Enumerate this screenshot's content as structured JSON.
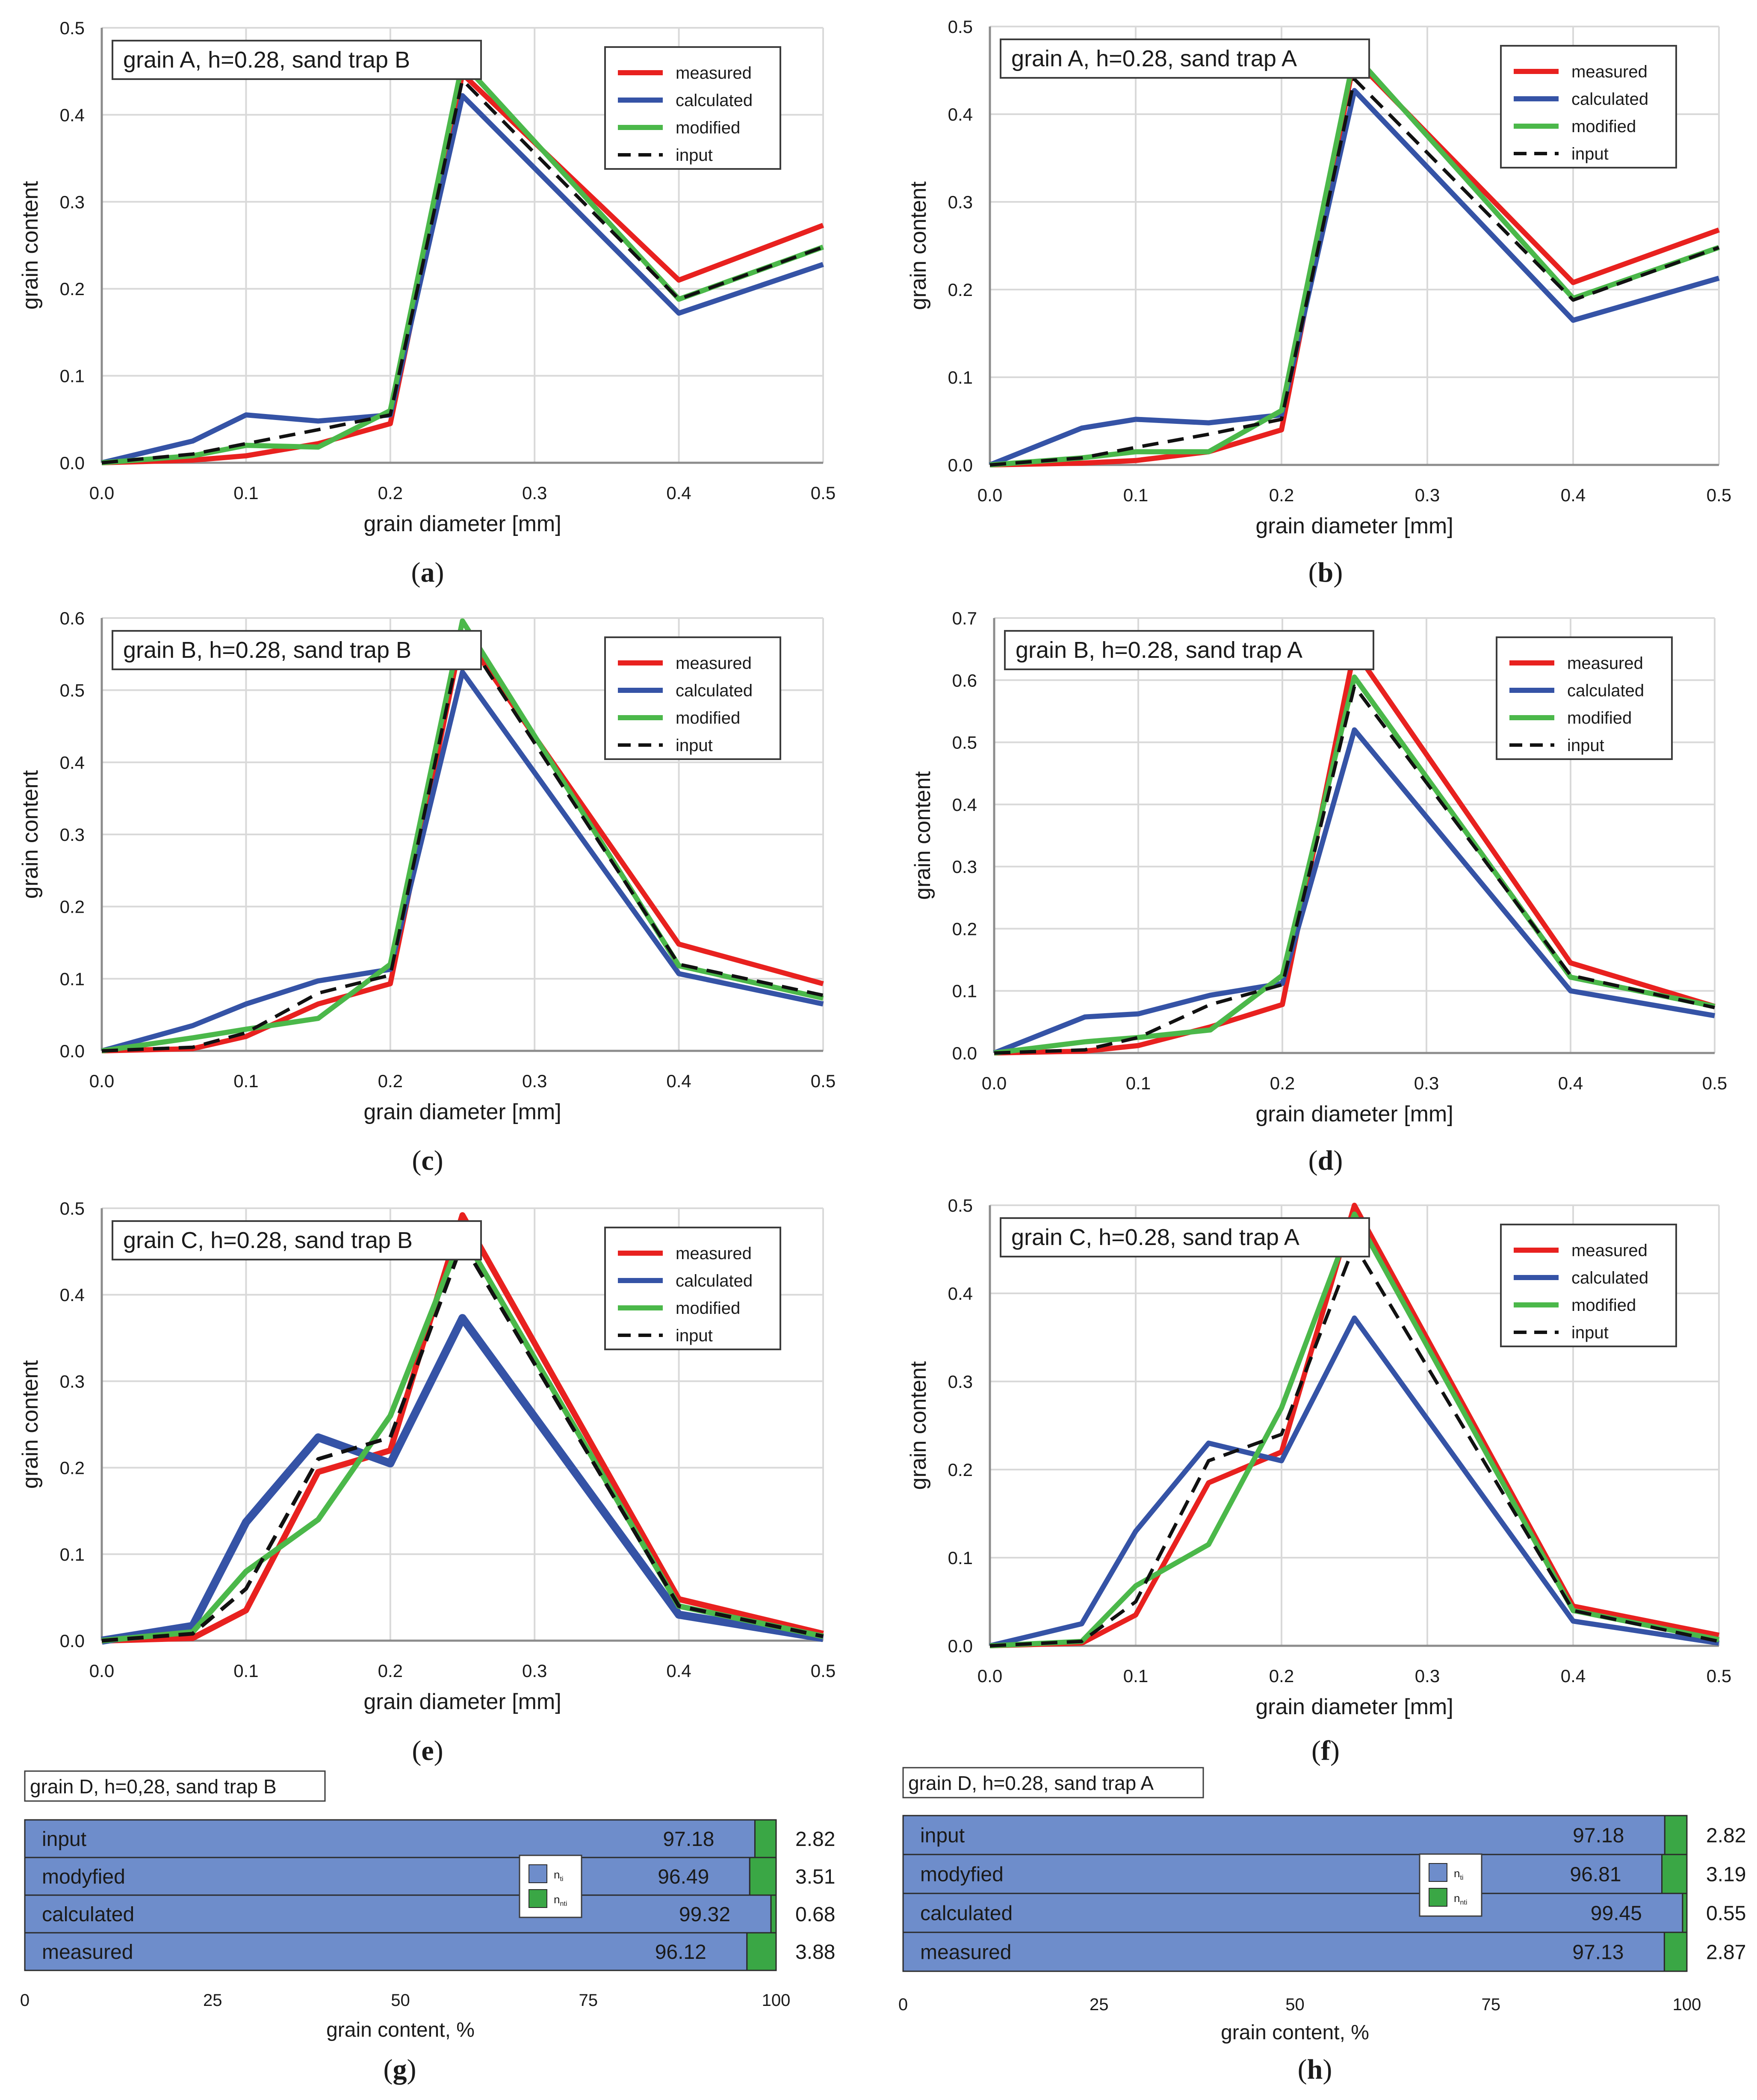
{
  "chart_data": [
    {
      "type": "line",
      "panel_label": "(a)",
      "panel_letter": "a",
      "title": "grain A, h=0.28, sand trap B",
      "xlabel": "grain diameter [mm]",
      "ylabel": "grain content",
      "xlim": [
        0,
        0.5
      ],
      "ylim": [
        0,
        0.5
      ],
      "xticks": [
        0,
        0.1,
        0.2,
        0.3,
        0.4,
        0.5
      ],
      "xtick_labels": [
        "0.0",
        "0.1",
        "0.2",
        "0.3",
        "0.4",
        "0.5"
      ],
      "yticks": [
        0,
        0.1,
        0.2,
        0.3,
        0.4,
        0.5
      ],
      "ytick_labels": [
        "0.0",
        "0.1",
        "0.2",
        "0.3",
        "0.4",
        "0.5"
      ],
      "grid": true,
      "legend": "top-right",
      "x": [
        0,
        0.063,
        0.1,
        0.15,
        0.2,
        0.25,
        0.4,
        0.5
      ],
      "series": [
        {
          "name": "measured",
          "color": "#e8211f",
          "style": "solid",
          "values": [
            0,
            0.003,
            0.008,
            0.022,
            0.045,
            0.447,
            0.21,
            0.273
          ]
        },
        {
          "name": "calculated",
          "color": "#3553a6",
          "style": "solid",
          "values": [
            0,
            0.025,
            0.055,
            0.048,
            0.055,
            0.422,
            0.172,
            0.228
          ]
        },
        {
          "name": "modified",
          "color": "#4bb84a",
          "style": "solid",
          "values": [
            0,
            0.008,
            0.02,
            0.018,
            0.06,
            0.46,
            0.188,
            0.248
          ]
        },
        {
          "name": "input",
          "color": "#111111",
          "style": "dashed",
          "values": [
            0,
            0.01,
            0.022,
            0.038,
            0.055,
            0.44,
            0.188,
            0.248
          ]
        }
      ]
    },
    {
      "type": "line",
      "panel_label": "(b)",
      "panel_letter": "b",
      "title": "grain A, h=0.28, sand trap A",
      "xlabel": "grain diameter [mm]",
      "ylabel": "grain content",
      "xlim": [
        0,
        0.5
      ],
      "ylim": [
        0,
        0.5
      ],
      "xticks": [
        0,
        0.1,
        0.2,
        0.3,
        0.4,
        0.5
      ],
      "xtick_labels": [
        "0.0",
        "0.1",
        "0.2",
        "0.3",
        "0.4",
        "0.5"
      ],
      "yticks": [
        0,
        0.1,
        0.2,
        0.3,
        0.4,
        0.5
      ],
      "ytick_labels": [
        "0.0",
        "0.1",
        "0.2",
        "0.3",
        "0.4",
        "0.5"
      ],
      "grid": true,
      "legend": "top-right",
      "x": [
        0,
        0.063,
        0.1,
        0.15,
        0.2,
        0.25,
        0.4,
        0.5
      ],
      "series": [
        {
          "name": "measured",
          "color": "#e8211f",
          "style": "solid",
          "values": [
            0,
            0.002,
            0.005,
            0.015,
            0.04,
            0.463,
            0.208,
            0.268
          ]
        },
        {
          "name": "calculated",
          "color": "#3553a6",
          "style": "solid",
          "values": [
            0,
            0.042,
            0.052,
            0.048,
            0.057,
            0.427,
            0.165,
            0.213
          ]
        },
        {
          "name": "modified",
          "color": "#4bb84a",
          "style": "solid",
          "values": [
            0,
            0.008,
            0.015,
            0.015,
            0.062,
            0.468,
            0.19,
            0.248
          ]
        },
        {
          "name": "input",
          "color": "#111111",
          "style": "dashed",
          "values": [
            0,
            0.008,
            0.02,
            0.035,
            0.052,
            0.44,
            0.188,
            0.248
          ]
        }
      ]
    },
    {
      "type": "line",
      "panel_label": "(c)",
      "panel_letter": "c",
      "title": "grain B, h=0.28, sand trap B",
      "xlabel": "grain diameter [mm]",
      "ylabel": "grain content",
      "xlim": [
        0,
        0.5
      ],
      "ylim": [
        0,
        0.6
      ],
      "xticks": [
        0,
        0.1,
        0.2,
        0.3,
        0.4,
        0.5
      ],
      "xtick_labels": [
        "0.0",
        "0.1",
        "0.2",
        "0.3",
        "0.4",
        "0.5"
      ],
      "yticks": [
        0,
        0.1,
        0.2,
        0.3,
        0.4,
        0.5,
        0.6
      ],
      "ytick_labels": [
        "0.0",
        "0.1",
        "0.2",
        "0.3",
        "0.4",
        "0.5",
        "0.6"
      ],
      "grid": true,
      "legend": "top-right",
      "x": [
        0,
        0.063,
        0.1,
        0.15,
        0.2,
        0.25,
        0.4,
        0.5
      ],
      "series": [
        {
          "name": "measured",
          "color": "#e8211f",
          "style": "solid",
          "values": [
            0,
            0.003,
            0.02,
            0.065,
            0.093,
            0.58,
            0.148,
            0.093
          ]
        },
        {
          "name": "calculated",
          "color": "#3553a6",
          "style": "solid",
          "values": [
            0,
            0.035,
            0.065,
            0.097,
            0.113,
            0.525,
            0.107,
            0.065
          ]
        },
        {
          "name": "modified",
          "color": "#4bb84a",
          "style": "solid",
          "values": [
            0,
            0.018,
            0.03,
            0.045,
            0.12,
            0.596,
            0.118,
            0.073
          ]
        },
        {
          "name": "input",
          "color": "#111111",
          "style": "dashed",
          "values": [
            0,
            0.005,
            0.025,
            0.08,
            0.105,
            0.58,
            0.12,
            0.077
          ]
        }
      ]
    },
    {
      "type": "line",
      "panel_label": "(d)",
      "panel_letter": "d",
      "title": "grain B, h=0.28, sand trap A",
      "xlabel": "grain diameter [mm]",
      "ylabel": "grain content",
      "xlim": [
        0,
        0.5
      ],
      "ylim": [
        0,
        0.7
      ],
      "xticks": [
        0,
        0.1,
        0.2,
        0.3,
        0.4,
        0.5
      ],
      "xtick_labels": [
        "0.0",
        "0.1",
        "0.2",
        "0.3",
        "0.4",
        "0.5"
      ],
      "yticks": [
        0,
        0.1,
        0.2,
        0.3,
        0.4,
        0.5,
        0.6,
        0.7
      ],
      "ytick_labels": [
        "0.0",
        "0.1",
        "0.2",
        "0.3",
        "0.4",
        "0.5",
        "0.6",
        "0.7"
      ],
      "grid": true,
      "legend": "top-right",
      "x": [
        0,
        0.063,
        0.1,
        0.15,
        0.2,
        0.25,
        0.4,
        0.5
      ],
      "series": [
        {
          "name": "measured",
          "color": "#e8211f",
          "style": "solid",
          "values": [
            0,
            0.003,
            0.012,
            0.042,
            0.078,
            0.648,
            0.145,
            0.075
          ]
        },
        {
          "name": "calculated",
          "color": "#3553a6",
          "style": "solid",
          "values": [
            0,
            0.058,
            0.063,
            0.093,
            0.112,
            0.52,
            0.1,
            0.06
          ]
        },
        {
          "name": "modified",
          "color": "#4bb84a",
          "style": "solid",
          "values": [
            0,
            0.018,
            0.025,
            0.037,
            0.125,
            0.605,
            0.122,
            0.075
          ]
        },
        {
          "name": "input",
          "color": "#111111",
          "style": "dashed",
          "values": [
            0,
            0.005,
            0.025,
            0.078,
            0.11,
            0.59,
            0.125,
            0.073
          ]
        }
      ]
    },
    {
      "type": "line",
      "panel_label": "(e)",
      "panel_letter": "e",
      "title": "grain C, h=0.28, sand trap B",
      "xlabel": "grain diameter [mm]",
      "ylabel": "grain content",
      "xlim": [
        0,
        0.5
      ],
      "ylim": [
        0,
        0.5
      ],
      "xticks": [
        0,
        0.1,
        0.2,
        0.3,
        0.4,
        0.5
      ],
      "xtick_labels": [
        "0.0",
        "0.1",
        "0.2",
        "0.3",
        "0.4",
        "0.5"
      ],
      "yticks": [
        0,
        0.1,
        0.2,
        0.3,
        0.4,
        0.5
      ],
      "ytick_labels": [
        "0.0",
        "0.1",
        "0.2",
        "0.3",
        "0.4",
        "0.5"
      ],
      "grid": true,
      "legend": "top-right",
      "x": [
        0,
        0.063,
        0.1,
        0.15,
        0.2,
        0.25,
        0.4,
        0.5
      ],
      "series": [
        {
          "name": "measured",
          "color": "#e8211f",
          "style": "solid",
          "width": 14,
          "values": [
            0,
            0.003,
            0.035,
            0.195,
            0.22,
            0.492,
            0.048,
            0.008
          ]
        },
        {
          "name": "calculated",
          "color": "#3553a6",
          "style": "solid",
          "width": 19,
          "values": [
            0,
            0.017,
            0.137,
            0.235,
            0.205,
            0.373,
            0.03,
            0.003
          ]
        },
        {
          "name": "modified",
          "color": "#4bb84a",
          "style": "solid",
          "width": 13,
          "values": [
            0,
            0.01,
            0.08,
            0.14,
            0.26,
            0.47,
            0.04,
            0.005
          ]
        },
        {
          "name": "input",
          "color": "#111111",
          "style": "dashed",
          "width": 9,
          "values": [
            0,
            0.008,
            0.06,
            0.21,
            0.235,
            0.46,
            0.04,
            0.005
          ]
        }
      ]
    },
    {
      "type": "line",
      "panel_label": "(f)",
      "panel_letter": "f",
      "title": "grain C, h=0.28, sand trap A",
      "xlabel": "grain diameter [mm]",
      "ylabel": "grain content",
      "xlim": [
        0,
        0.5
      ],
      "ylim": [
        0,
        0.5
      ],
      "xticks": [
        0,
        0.1,
        0.2,
        0.3,
        0.4,
        0.5
      ],
      "xtick_labels": [
        "0.0",
        "0.1",
        "0.2",
        "0.3",
        "0.4",
        "0.5"
      ],
      "yticks": [
        0,
        0.1,
        0.2,
        0.3,
        0.4,
        0.5
      ],
      "ytick_labels": [
        "0.0",
        "0.1",
        "0.2",
        "0.3",
        "0.4",
        "0.5"
      ],
      "grid": true,
      "legend": "top-right",
      "x": [
        0,
        0.063,
        0.1,
        0.15,
        0.2,
        0.25,
        0.4,
        0.5
      ],
      "series": [
        {
          "name": "measured",
          "color": "#e8211f",
          "style": "solid",
          "values": [
            0,
            0.003,
            0.035,
            0.185,
            0.22,
            0.5,
            0.045,
            0.012
          ]
        },
        {
          "name": "calculated",
          "color": "#3553a6",
          "style": "solid",
          "values": [
            0,
            0.025,
            0.13,
            0.23,
            0.21,
            0.372,
            0.028,
            0.003
          ]
        },
        {
          "name": "modified",
          "color": "#4bb84a",
          "style": "solid",
          "values": [
            0,
            0.005,
            0.068,
            0.115,
            0.27,
            0.49,
            0.04,
            0.007
          ]
        },
        {
          "name": "input",
          "color": "#111111",
          "style": "dashed",
          "values": [
            0,
            0.005,
            0.05,
            0.21,
            0.24,
            0.455,
            0.04,
            0.005
          ]
        }
      ]
    },
    {
      "type": "bar",
      "orientation": "horizontal",
      "stacked": true,
      "panel_label": "(g)",
      "panel_letter": "g",
      "title": "grain D, h=0,28, sand trap B",
      "xlabel": "grain content, %",
      "xlim": [
        0,
        100
      ],
      "xticks": [
        0,
        25,
        50,
        75,
        100
      ],
      "xtick_labels": [
        "0",
        "25",
        "50",
        "75",
        "100"
      ],
      "categories": [
        "input",
        "modyfied",
        "calculated",
        "measured"
      ],
      "series": [
        {
          "name": "n",
          "subscript": "ti",
          "color": "#6e8dcb",
          "values": [
            97.18,
            96.49,
            99.32,
            96.12
          ],
          "labels": [
            "97.18",
            "96.49",
            "99.32",
            "96.12"
          ]
        },
        {
          "name": "n",
          "subscript": "nti",
          "color": "#3aa745",
          "values": [
            2.82,
            3.51,
            0.68,
            3.88
          ],
          "labels": [
            "2.82",
            "3.51",
            "0.68",
            "3.88"
          ]
        }
      ]
    },
    {
      "type": "bar",
      "orientation": "horizontal",
      "stacked": true,
      "panel_label": "(h)",
      "panel_letter": "h",
      "title": "grain D, h=0.28, sand trap A",
      "xlabel": "grain content, %",
      "xlim": [
        0,
        100
      ],
      "xticks": [
        0,
        25,
        50,
        75,
        100
      ],
      "xtick_labels": [
        "0",
        "25",
        "50",
        "75",
        "100"
      ],
      "categories": [
        "input",
        "modyfied",
        "calculated",
        "measured"
      ],
      "series": [
        {
          "name": "n",
          "subscript": "ti",
          "color": "#6e8dcb",
          "values": [
            97.18,
            96.81,
            99.45,
            97.13
          ],
          "labels": [
            "97.18",
            "96.81",
            "99.45",
            "97.13"
          ]
        },
        {
          "name": "n",
          "subscript": "nti",
          "color": "#3aa745",
          "values": [
            2.82,
            3.19,
            0.55,
            2.87
          ],
          "labels": [
            "2.82",
            "3.19",
            "0.55",
            "2.87"
          ]
        }
      ]
    }
  ]
}
